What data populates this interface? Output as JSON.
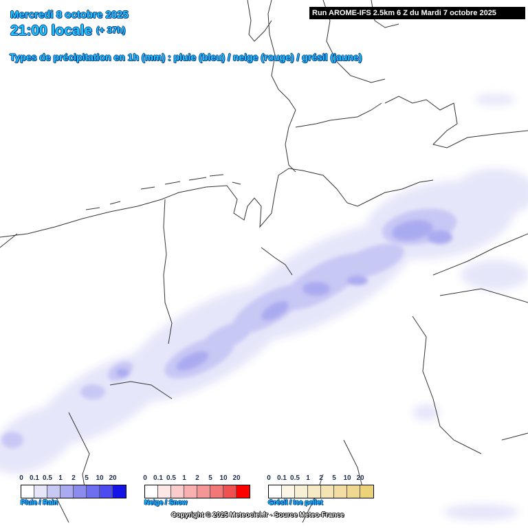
{
  "header": {
    "date": "Mercredi 8 octobre 2025",
    "time": "21:00 locale",
    "lead": "(+ 37h)",
    "subtitle": "Types de précipitation en 1h (mm) : pluie (bleu) / neige (rouge) / grésil (jaune)",
    "run": "Run AROME-IFS 2.5km 6 Z du Mardi 7 octobre 2025"
  },
  "legends": [
    {
      "label": "Pluie / Rain",
      "ticks": [
        "0",
        "0.1",
        "0.5",
        "1",
        "2",
        "5",
        "10",
        "20"
      ],
      "colors": [
        "#ffffff",
        "#e6e6fa",
        "#c8c8f5",
        "#aaaaf0",
        "#8c8cf0",
        "#6e6ef0",
        "#4b4bf0",
        "#1414e6"
      ]
    },
    {
      "label": "Neige / Snow",
      "ticks": [
        "0",
        "0.1",
        "0.5",
        "1",
        "2",
        "5",
        "10",
        "20"
      ],
      "colors": [
        "#ffffff",
        "#fde6e6",
        "#fbcccc",
        "#f8b0b0",
        "#f59696",
        "#f27878",
        "#f05050",
        "#ff0000"
      ]
    },
    {
      "label": "Grésil / Ice pellet",
      "ticks": [
        "0",
        "0.1",
        "0.5",
        "1",
        "2",
        "5",
        "10",
        "20"
      ],
      "colors": [
        "#ffffff",
        "#fbf6e6",
        "#f8f0d4",
        "#f6eac4",
        "#f4e4b4",
        "#f2dea4",
        "#f0d890",
        "#ecd278"
      ]
    }
  ],
  "copyright": "Copyright © 2025 Meteociel.fr - Source Meteo-France"
}
